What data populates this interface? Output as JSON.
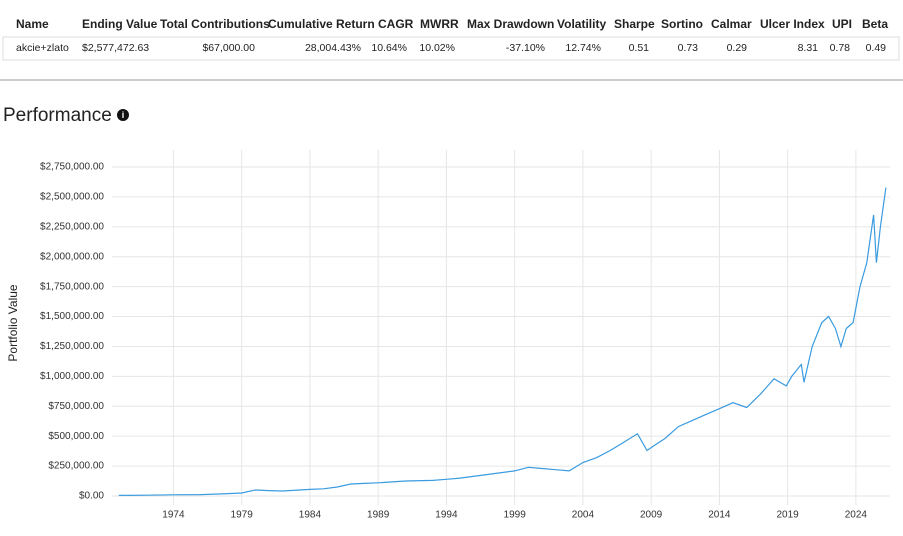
{
  "table": {
    "header": [
      "Name",
      "Ending Value",
      "Total Contributions",
      "Cumulative Return",
      "CAGR",
      "MWRR",
      "Max Drawdown",
      "Volatility",
      "Sharpe",
      "Sortino",
      "Calmar",
      "Ulcer Index",
      "UPI",
      "Beta"
    ],
    "rows": [
      [
        "akcie+zlato",
        "$2,577,472.63",
        "$67,000.00",
        "28,004.43%",
        "10.64%",
        "10.02%",
        "-37.10%",
        "12.74%",
        "0.51",
        "0.73",
        "0.29",
        "8.31",
        "0.78",
        "0.49"
      ]
    ]
  },
  "chart_data": {
    "type": "line",
    "title": "Performance",
    "y_label": "Portfolio Value",
    "color": "#3a9be0",
    "grid": true,
    "x": [
      1970,
      1972,
      1974,
      1976,
      1978,
      1979,
      1980,
      1981,
      1982,
      1984,
      1985,
      1986,
      1987,
      1988,
      1989,
      1991,
      1993,
      1994,
      1995,
      1997,
      1999,
      2000,
      2001,
      2002,
      2003,
      2004,
      2005,
      2006,
      2007,
      2008,
      2008.7,
      2009.2,
      2010,
      2011,
      2012,
      2013,
      2014,
      2015,
      2016,
      2017,
      2018,
      2018.9,
      2019.3,
      2020,
      2020.2,
      2020.8,
      2021.5,
      2022,
      2022.5,
      2022.9,
      2023.3,
      2023.8,
      2024.3,
      2024.8,
      2025.3,
      2025.5,
      2025.8,
      2026.2
    ],
    "values": [
      5000,
      7000,
      10000,
      12000,
      20000,
      25000,
      50000,
      45000,
      42000,
      55000,
      60000,
      75000,
      100000,
      105000,
      110000,
      125000,
      130000,
      140000,
      150000,
      180000,
      210000,
      240000,
      230000,
      220000,
      210000,
      280000,
      320000,
      380000,
      450000,
      520000,
      380000,
      420000,
      480000,
      580000,
      630000,
      680000,
      730000,
      780000,
      740000,
      850000,
      980000,
      920000,
      1000000,
      1100000,
      950000,
      1250000,
      1450000,
      1500000,
      1400000,
      1250000,
      1400000,
      1450000,
      1750000,
      1950000,
      2350000,
      1950000,
      2250000,
      2577472.63
    ],
    "xlim": [
      1969.5,
      2026.5
    ],
    "xticks": [
      1974,
      1979,
      1984,
      1989,
      1994,
      1999,
      2004,
      2009,
      2014,
      2019,
      2024
    ],
    "ylim": [
      0,
      2750000
    ],
    "yticks": [
      {
        "value": 0,
        "label": "$0.00"
      },
      {
        "value": 250000,
        "label": "$250,000.00"
      },
      {
        "value": 500000,
        "label": "$500,000.00"
      },
      {
        "value": 750000,
        "label": "$750,000.00"
      },
      {
        "value": 1000000,
        "label": "$1,000,000.00"
      },
      {
        "value": 1250000,
        "label": "$1,250,000.00"
      },
      {
        "value": 1500000,
        "label": "$1,500,000.00"
      },
      {
        "value": 1750000,
        "label": "$1,750,000.00"
      },
      {
        "value": 2000000,
        "label": "$2,000,000.00"
      },
      {
        "value": 2250000,
        "label": "$2,250,000.00"
      },
      {
        "value": 2500000,
        "label": "$2,500,000.00"
      },
      {
        "value": 2750000,
        "label": "$2,750,000.00"
      }
    ]
  }
}
